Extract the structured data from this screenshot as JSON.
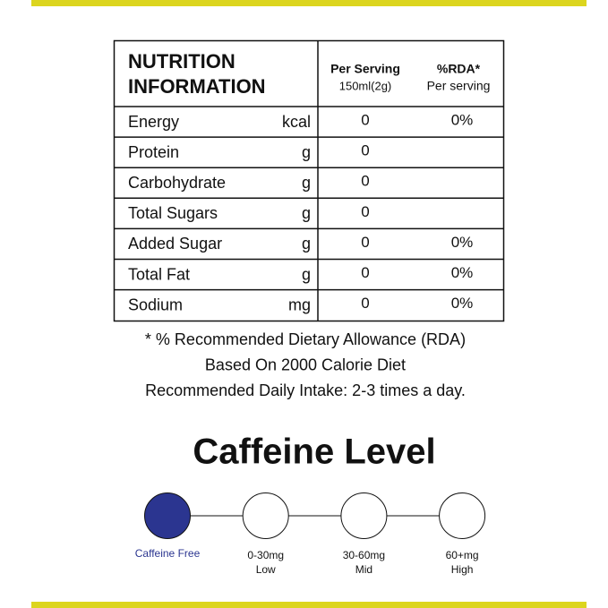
{
  "table": {
    "header": {
      "title": [
        "NUTRITION",
        "INFORMATION"
      ],
      "per_serving": [
        "Per Serving",
        "150ml(2g)"
      ],
      "rda": [
        "%RDA*",
        "Per serving"
      ]
    },
    "rows": [
      {
        "name": "Energy",
        "unit": "kcal",
        "per_serving": 0,
        "rda": "0%"
      },
      {
        "name": "Protein",
        "unit": "g",
        "per_serving": 0
      },
      {
        "name": "Carbohydrate",
        "unit": "g",
        "per_serving": 0
      },
      {
        "name": "Total Sugars",
        "unit": "g",
        "per_serving": 0
      },
      {
        "name": "Added Sugar",
        "unit": "g",
        "per_serving": 0,
        "rda": "0%"
      },
      {
        "name": "Total Fat",
        "unit": "g",
        "per_serving": 0,
        "rda": "0%"
      },
      {
        "name": "Sodium",
        "unit": "mg",
        "per_serving": 0,
        "rda": "0%"
      }
    ]
  },
  "notes": [
    "* % Recommended Dietary Allowance (RDA)",
    "Based On 2000 Calorie Diet",
    "Recommended Daily Intake: 2-3 times a day."
  ],
  "caffeine": {
    "title": "Caffeine Level",
    "levels": [
      {
        "label": [
          "Caffeine Free"
        ],
        "active": true
      },
      {
        "label": [
          "0-30mg",
          "Low"
        ],
        "active": false
      },
      {
        "label": [
          "30-60mg",
          "Mid"
        ],
        "active": false
      },
      {
        "label": [
          "60+mg",
          "High"
        ],
        "active": false
      }
    ]
  }
}
